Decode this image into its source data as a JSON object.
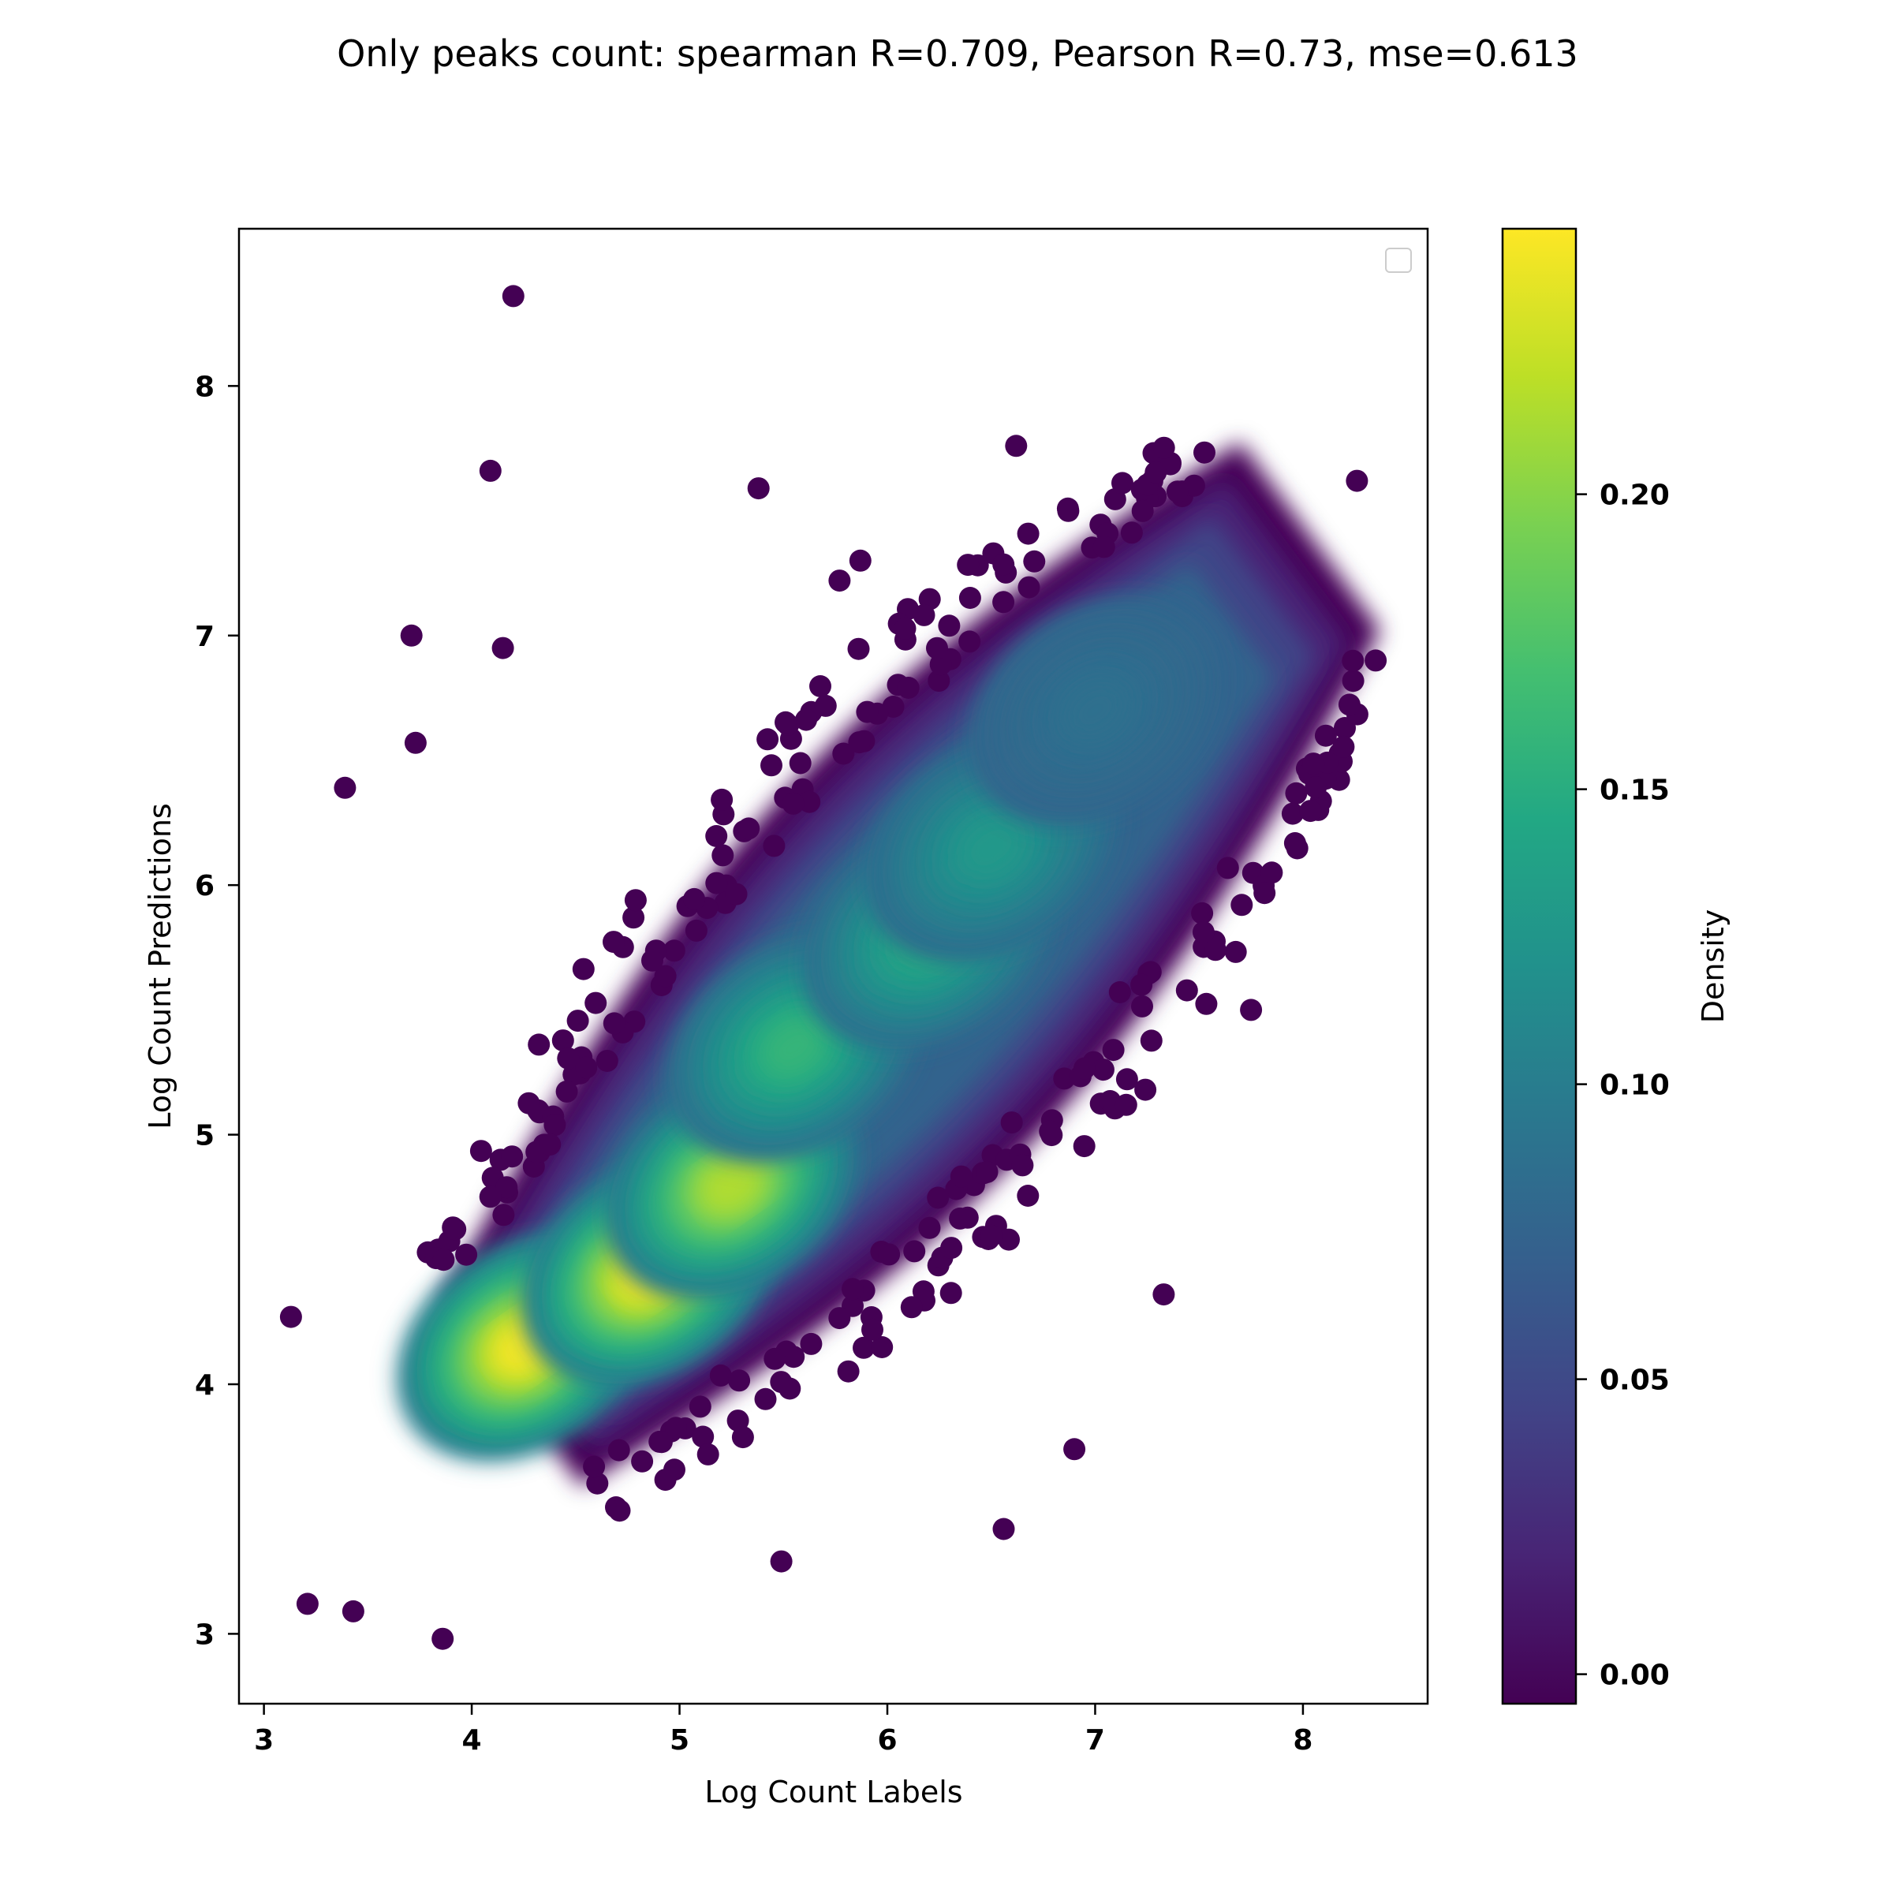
{
  "chart_data": {
    "type": "scatter",
    "title": "Only peaks count: spearman R=0.709, Pearson R=0.73, mse=0.613",
    "xlabel": "Log Count Labels",
    "ylabel": "Log Count Predictions",
    "xlim": [
      2.88,
      8.6
    ],
    "ylim": [
      2.72,
      8.63
    ],
    "xticks": [
      "3",
      "4",
      "5",
      "6",
      "7",
      "8"
    ],
    "yticks": [
      "3",
      "4",
      "5",
      "6",
      "7",
      "8"
    ],
    "grid": false,
    "legend": "top-right (empty)",
    "colormap": "viridis",
    "colorbar": {
      "label": "Density",
      "range": [
        -0.005,
        0.245
      ],
      "ticks": [
        "0.00",
        "0.05",
        "0.10",
        "0.15",
        "0.20"
      ]
    },
    "density_peaks": [
      {
        "x": 4.25,
        "y": 4.15,
        "density": 0.24
      },
      {
        "x": 4.85,
        "y": 4.45,
        "density": 0.24
      },
      {
        "x": 5.25,
        "y": 4.8,
        "density": 0.215
      },
      {
        "x": 5.55,
        "y": 5.35,
        "density": 0.16
      },
      {
        "x": 6.2,
        "y": 5.8,
        "density": 0.15
      },
      {
        "x": 6.5,
        "y": 6.15,
        "density": 0.13
      },
      {
        "x": 7.0,
        "y": 6.7,
        "density": 0.09
      }
    ],
    "outliers": [
      {
        "x": 4.2,
        "y": 8.36
      },
      {
        "x": 4.09,
        "y": 7.66
      },
      {
        "x": 5.38,
        "y": 7.59
      },
      {
        "x": 6.62,
        "y": 7.76
      },
      {
        "x": 3.71,
        "y": 7.0
      },
      {
        "x": 4.15,
        "y": 6.95
      },
      {
        "x": 8.26,
        "y": 7.62
      },
      {
        "x": 8.35,
        "y": 6.9
      },
      {
        "x": 7.85,
        "y": 6.05
      },
      {
        "x": 7.75,
        "y": 5.5
      },
      {
        "x": 7.33,
        "y": 4.36
      },
      {
        "x": 6.9,
        "y": 3.74
      },
      {
        "x": 6.56,
        "y": 3.42
      },
      {
        "x": 5.49,
        "y": 3.29
      },
      {
        "x": 3.86,
        "y": 2.98
      },
      {
        "x": 3.21,
        "y": 3.12
      },
      {
        "x": 3.43,
        "y": 3.09
      },
      {
        "x": 3.13,
        "y": 4.27
      },
      {
        "x": 3.39,
        "y": 6.39
      },
      {
        "x": 3.73,
        "y": 6.57
      },
      {
        "x": 5.77,
        "y": 7.22
      },
      {
        "x": 5.87,
        "y": 7.3
      }
    ]
  }
}
